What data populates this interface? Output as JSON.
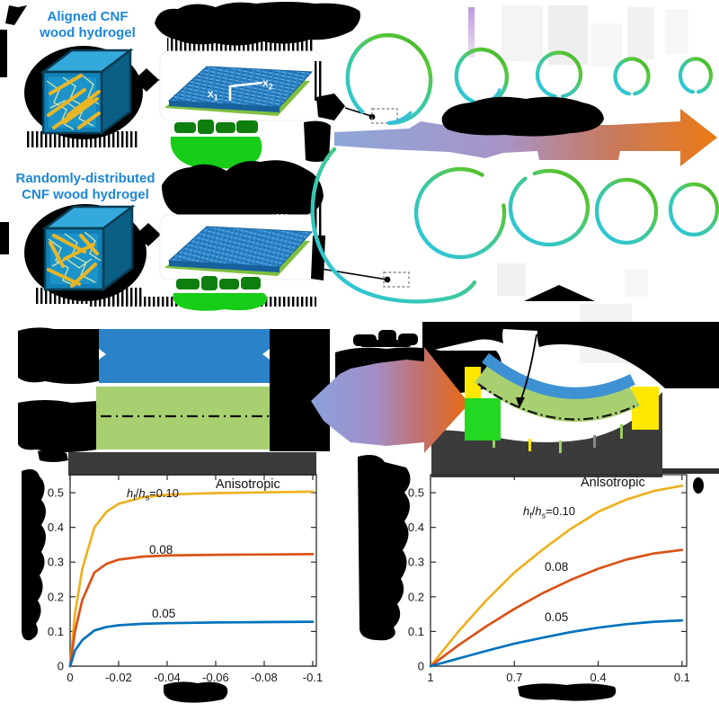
{
  "figure": {
    "row1_label": [
      "Aligned CNF",
      "wood hydrogel"
    ],
    "row2_label": [
      "Randomly-distributed",
      "CNF wood hydrogel"
    ],
    "plate_axes": {
      "x": "x",
      "sub1": "1",
      "sub2": "2"
    }
  },
  "charts_common": {
    "anisotropic": "Anisotropic",
    "ratio_h": "h",
    "ratio_sub_f": "f",
    "ratio_slash": "/",
    "ratio_h2": "h",
    "ratio_sub_s": "s",
    "ratio_eq": "=0.10",
    "label_mid": "0.08",
    "label_low": "0.05"
  },
  "colors": {
    "accent_blue_text": "#1b87d9",
    "series_yellow": "#EDB120",
    "series_orange": "#D95319",
    "series_blue": "#0072BD",
    "ring_cyan": "#28c5ea",
    "ring_green": "#4cc32e",
    "redaction_black": "#000000",
    "caption_band_gray": "#3b3b3b",
    "hydrogel_plate_blue": "#2e86c8",
    "substrate_green": "#a8d070"
  },
  "chart_data": [
    {
      "type": "line",
      "title": "",
      "xlabel_redacted": true,
      "ylabel_redacted": true,
      "annotation": "Anisotropic",
      "xlim": [
        0,
        -0.1015
      ],
      "ylim": [
        0,
        0.552
      ],
      "x_ticks": [
        0,
        -0.02,
        -0.04,
        -0.06,
        -0.08,
        -0.1
      ],
      "x_tick_labels": [
        "0",
        "-0.02",
        "-0.04",
        "-0.06",
        "-0.08",
        "-0.1"
      ],
      "y_ticks": [
        0,
        0.1,
        0.2,
        0.3,
        0.4,
        0.5
      ],
      "y_tick_labels": [
        "0",
        "0.1",
        "0.2",
        "0.3",
        "0.4",
        "0.5"
      ],
      "x": [
        0,
        -0.002,
        -0.005,
        -0.01,
        -0.015,
        -0.02,
        -0.03,
        -0.04,
        -0.05,
        -0.06,
        -0.08,
        -0.1
      ],
      "series": [
        {
          "name": "hf/hs=0.10",
          "color": "#EDB120",
          "values": [
            0,
            0.15,
            0.28,
            0.4,
            0.445,
            0.468,
            0.487,
            0.494,
            0.497,
            0.499,
            0.501,
            0.503
          ]
        },
        {
          "name": "hf/hs=0.08",
          "color": "#D95319",
          "values": [
            0,
            0.1,
            0.19,
            0.27,
            0.295,
            0.307,
            0.316,
            0.319,
            0.32,
            0.321,
            0.322,
            0.323
          ]
        },
        {
          "name": "hf/hs=0.05",
          "color": "#0072BD",
          "values": [
            0,
            0.045,
            0.075,
            0.103,
            0.113,
            0.118,
            0.122,
            0.124,
            0.125,
            0.126,
            0.127,
            0.128
          ]
        }
      ]
    },
    {
      "type": "line",
      "title": "",
      "xlabel_redacted": true,
      "ylabel_redacted": true,
      "annotation": "Anisotropic",
      "xlim": [
        1,
        0.0835
      ],
      "ylim": [
        0,
        0.552
      ],
      "x_ticks": [
        1,
        0.7,
        0.4,
        0.1
      ],
      "x_tick_labels": [
        "1",
        "0.7",
        "0.4",
        "0.1"
      ],
      "y_ticks": [
        0,
        0.1,
        0.2,
        0.3,
        0.4,
        0.5
      ],
      "y_tick_labels": [
        "0",
        "0.1",
        "0.2",
        "0.3",
        "0.4",
        "0.5"
      ],
      "x": [
        1,
        0.9,
        0.8,
        0.7,
        0.6,
        0.5,
        0.4,
        0.3,
        0.2,
        0.1
      ],
      "series": [
        {
          "name": "hf/hs=0.10",
          "color": "#EDB120",
          "values": [
            0,
            0.1,
            0.19,
            0.27,
            0.335,
            0.395,
            0.445,
            0.48,
            0.505,
            0.52
          ]
        },
        {
          "name": "hf/hs=0.08",
          "color": "#D95319",
          "values": [
            0,
            0.06,
            0.115,
            0.165,
            0.21,
            0.248,
            0.281,
            0.307,
            0.325,
            0.335
          ]
        },
        {
          "name": "hf/hs=0.05",
          "color": "#0072BD",
          "values": [
            0,
            0.022,
            0.044,
            0.065,
            0.082,
            0.098,
            0.111,
            0.121,
            0.128,
            0.132
          ]
        }
      ]
    }
  ]
}
